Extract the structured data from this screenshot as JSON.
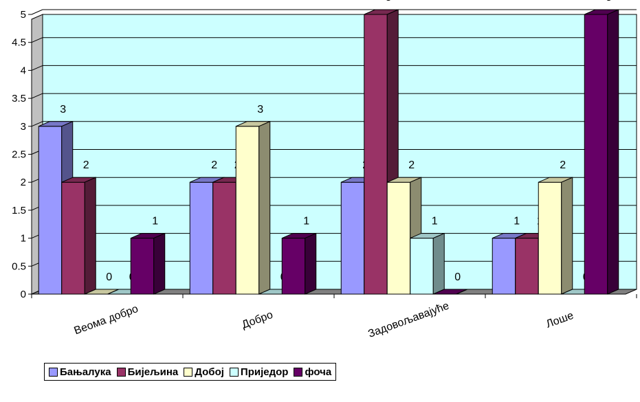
{
  "chart_data": {
    "type": "bar",
    "categories": [
      "Веома добро",
      "Добро",
      "Задовољавајуће",
      "Лоше"
    ],
    "series": [
      {
        "name": "Бањалука",
        "values": [
          3,
          2,
          2,
          1
        ],
        "color": "#9999ff"
      },
      {
        "name": "Бијељина",
        "values": [
          2,
          2,
          5,
          1
        ],
        "color": "#993366"
      },
      {
        "name": "Добој",
        "values": [
          0,
          3,
          2,
          2
        ],
        "color": "#ffffcc"
      },
      {
        "name": "Приједор",
        "values": [
          0,
          0,
          1,
          0
        ],
        "color": "#ccffff"
      },
      {
        "name": "фоча",
        "values": [
          1,
          1,
          0,
          5
        ],
        "color": "#660066"
      }
    ],
    "ylim": [
      0,
      5
    ],
    "yticks": [
      "0",
      "0.5",
      "1",
      "1.5",
      "2",
      "2.5",
      "3",
      "3.5",
      "4",
      "4.5",
      "5"
    ],
    "grid": true,
    "legend_position": "bottom-left",
    "plot_background": "#ccffff",
    "floor_color": "#808080"
  }
}
